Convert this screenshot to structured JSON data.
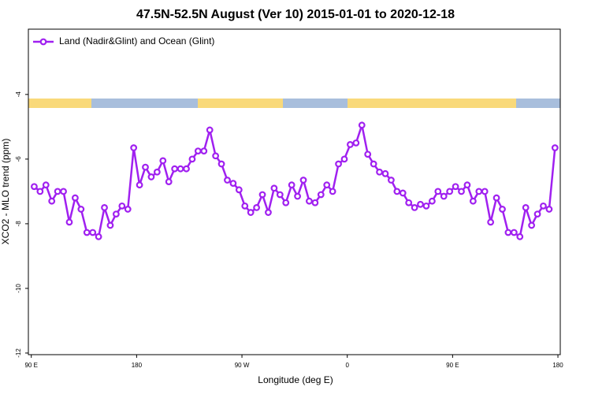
{
  "chart_data": {
    "type": "line",
    "title": "47.5N-52.5N August (Ver 10)   2015-01-01 to 2020-12-18",
    "x_label": "Longitude (deg E)",
    "y_label": "XCO2 - MLO trend (ppm)",
    "legend_position": "top-left",
    "x": [
      92.5,
      97.5,
      102.5,
      107.5,
      112.5,
      117.5,
      122.5,
      127.5,
      132.5,
      137.5,
      142.5,
      147.5,
      152.5,
      157.5,
      162.5,
      167.5,
      172.5,
      177.5,
      182.5,
      187.5,
      192.5,
      197.5,
      202.5,
      207.5,
      212.5,
      217.5,
      222.5,
      227.5,
      232.5,
      237.5,
      242.5,
      247.5,
      252.5,
      257.5,
      262.5,
      267.5,
      272.5,
      277.5,
      282.5,
      287.5,
      292.5,
      297.5,
      302.5,
      307.5,
      312.5,
      317.5,
      322.5,
      327.5,
      332.5,
      337.5,
      342.5,
      347.5,
      352.5,
      357.5,
      362.5,
      367.5,
      372.5,
      377.5,
      382.5,
      387.5,
      392.5,
      397.5,
      402.5,
      407.5,
      412.5,
      417.5,
      422.5,
      427.5,
      432.5,
      437.5,
      442.5,
      447.5,
      452.5,
      457.5,
      462.5,
      467.5,
      472.5,
      477.5,
      482.5,
      487.5,
      492.5,
      497.5,
      502.5,
      507.5,
      512.5,
      517.5,
      522.5,
      527.5,
      532.5,
      537.5
    ],
    "series": [
      {
        "name": "Land (Nadir&Glint) and Ocean (Glint)",
        "color": "#a020f0",
        "values": [
          -6.85,
          -7.0,
          -6.8,
          -7.3,
          -7.0,
          -7.0,
          -7.95,
          -7.2,
          -7.55,
          -8.27,
          -8.27,
          -8.4,
          -7.5,
          -8.05,
          -7.7,
          -7.45,
          -7.55,
          -5.65,
          -6.8,
          -6.25,
          -6.55,
          -6.4,
          -6.05,
          -6.7,
          -6.3,
          -6.3,
          -6.3,
          -6.0,
          -5.75,
          -5.75,
          -5.1,
          -5.9,
          -6.15,
          -6.65,
          -6.75,
          -6.95,
          -7.45,
          -7.65,
          -7.5,
          -7.1,
          -7.65,
          -6.9,
          -7.1,
          -7.35,
          -6.8,
          -7.15,
          -6.65,
          -7.3,
          -7.35,
          -7.1,
          -6.8,
          -7.0,
          -6.15,
          -6.0,
          -5.55,
          -5.5,
          -4.95,
          -5.85,
          -6.15,
          -6.4,
          -6.45,
          -6.65,
          -7.0,
          -7.05,
          -7.35,
          -7.5,
          -7.4,
          -7.45,
          -7.3,
          -7.0,
          -7.15,
          -7.0,
          -6.85,
          -7.0,
          -6.8,
          -7.3,
          -7.0,
          -7.0,
          -7.95,
          -7.2,
          -7.55,
          -8.27,
          -8.27,
          -8.4,
          -7.5,
          -8.05,
          -7.7,
          -7.45,
          -7.55,
          -5.65
        ]
      }
    ],
    "xlim": [
      87.5,
      542
    ],
    "ylim": [
      -12.05,
      -1.98
    ],
    "xticks": [
      {
        "value": 90,
        "label": "90 E"
      },
      180,
      {
        "value": 270,
        "label": "90 W"
      },
      {
        "value": 360,
        "label": "0"
      },
      {
        "value": 450,
        "label": "90 E"
      },
      {
        "value": 540,
        "label": "180"
      }
    ],
    "yticks": [
      -4,
      -6,
      -8,
      -10,
      -12
    ]
  }
}
